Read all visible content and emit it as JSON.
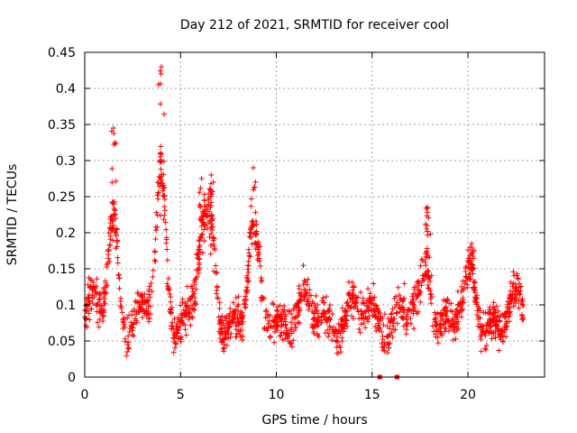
{
  "chart_data": {
    "type": "scatter",
    "title": "Day 212 of 2021, SRMTID for receiver cool",
    "xlabel": "GPS time / hours",
    "ylabel": "SRMTID / TECUs",
    "xlim": [
      0,
      24
    ],
    "ylim": [
      0,
      0.45
    ],
    "grid": true,
    "xticks": [
      0,
      5,
      10,
      15,
      20
    ],
    "xtick_labels": [
      "0",
      "5",
      "10",
      "15",
      "20"
    ],
    "yticks": [
      0,
      0.05,
      0.1,
      0.15,
      0.2,
      0.25,
      0.3,
      0.35,
      0.4,
      0.45
    ],
    "ytick_labels": [
      "0",
      "0.05",
      "0.1",
      "0.15",
      "0.2",
      "0.25",
      "0.3",
      "0.35",
      "0.4",
      "0.45"
    ],
    "marker": "plus",
    "marker_color": "#ff0000",
    "x_range_of_data": [
      0,
      22.9
    ],
    "bursts": [
      {
        "t": 1.5,
        "peak": 0.345
      },
      {
        "t": 4.0,
        "peak": 0.43
      },
      {
        "t": 6.1,
        "peak": 0.275
      },
      {
        "t": 6.6,
        "peak": 0.28
      },
      {
        "t": 8.8,
        "peak": 0.29
      },
      {
        "t": 17.9,
        "peak": 0.235
      },
      {
        "t": 20.2,
        "peak": 0.185
      }
    ],
    "zero_points": [
      {
        "x": 15.4,
        "y": 0
      },
      {
        "x": 16.3,
        "y": 0
      }
    ]
  }
}
